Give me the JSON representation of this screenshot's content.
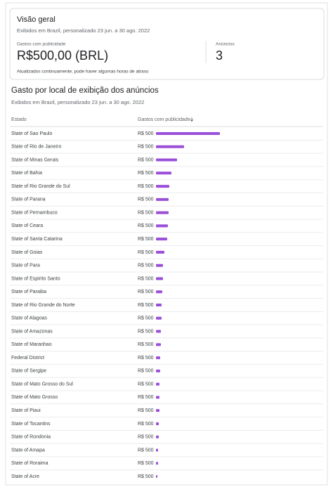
{
  "overview": {
    "title": "Visão geral",
    "subtitle": "Exibidos em Brazil, personalizado 23 jun. a 30 ago. 2022",
    "spend_label": "Gastos com publicidade",
    "spend_value": "R$500,00 (BRL)",
    "ads_label": "Anúncios",
    "ads_value": "3",
    "note": "Atualizados continuamente, pode haver algumas horas de atraso"
  },
  "section": {
    "title": "Gasto por local de exibição dos anúncios",
    "subtitle": "Exibidos em Brazil, personalizado 23 jun. a 30 ago. 2022"
  },
  "table": {
    "headers": [
      "Estado",
      "Gastos com publicidade"
    ],
    "rows": [
      {
        "estado": "State of Sao Paulo",
        "gasto": "R$ 500",
        "bar": 91
      },
      {
        "estado": "State of Rio de Janeiro",
        "gasto": "R$ 500",
        "bar": 40
      },
      {
        "estado": "State of Minas Gerais",
        "gasto": "R$ 500",
        "bar": 30
      },
      {
        "estado": "State of Bahia",
        "gasto": "R$ 500",
        "bar": 22
      },
      {
        "estado": "State of Rio Grande do Sul",
        "gasto": "R$ 500",
        "bar": 19
      },
      {
        "estado": "State of Parana",
        "gasto": "R$ 500",
        "bar": 18
      },
      {
        "estado": "State of Pernambuco",
        "gasto": "R$ 500",
        "bar": 18
      },
      {
        "estado": "State of Ceara",
        "gasto": "R$ 500",
        "bar": 17
      },
      {
        "estado": "State of Santa Catarina",
        "gasto": "R$ 500",
        "bar": 16
      },
      {
        "estado": "State of Goias",
        "gasto": "R$ 500",
        "bar": 12
      },
      {
        "estado": "State of Para",
        "gasto": "R$ 500",
        "bar": 10
      },
      {
        "estado": "State of Espirito Santo",
        "gasto": "R$ 500",
        "bar": 10
      },
      {
        "estado": "State of Paraiba",
        "gasto": "R$ 500",
        "bar": 9
      },
      {
        "estado": "State of Rio Grande do Norte",
        "gasto": "R$ 500",
        "bar": 8
      },
      {
        "estado": "State of Alagoas",
        "gasto": "R$ 500",
        "bar": 8
      },
      {
        "estado": "State of Amazonas",
        "gasto": "R$ 500",
        "bar": 7
      },
      {
        "estado": "State of Maranhao",
        "gasto": "R$ 500",
        "bar": 7
      },
      {
        "estado": "Federal District",
        "gasto": "R$ 500",
        "bar": 6
      },
      {
        "estado": "State of Sergipe",
        "gasto": "R$ 500",
        "bar": 6
      },
      {
        "estado": "State of Mato Grosso do Sul",
        "gasto": "R$ 500",
        "bar": 5
      },
      {
        "estado": "State of Mato Grosso",
        "gasto": "R$ 500",
        "bar": 5
      },
      {
        "estado": "State of Piaui",
        "gasto": "R$ 500",
        "bar": 5
      },
      {
        "estado": "State of Tocantins",
        "gasto": "R$ 500",
        "bar": 4
      },
      {
        "estado": "State of Rondonia",
        "gasto": "R$ 500",
        "bar": 4
      },
      {
        "estado": "State of Amapa",
        "gasto": "R$ 500",
        "bar": 3
      },
      {
        "estado": "State of Roraima",
        "gasto": "R$ 500",
        "bar": 3
      },
      {
        "estado": "State of Acre",
        "gasto": "R$ 500",
        "bar": 2
      }
    ]
  }
}
